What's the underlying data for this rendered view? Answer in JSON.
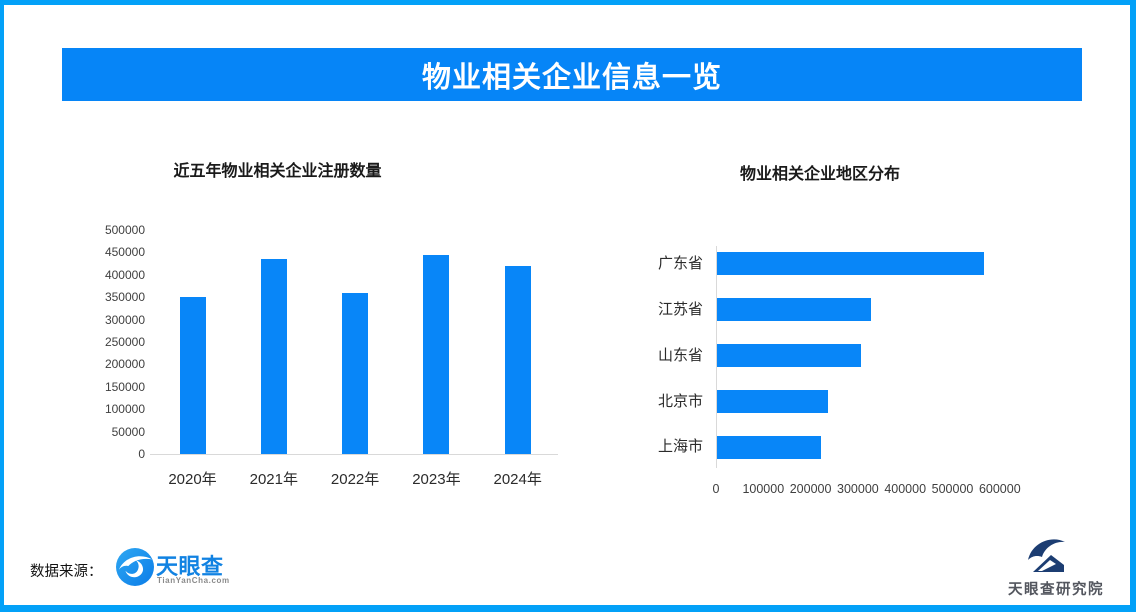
{
  "header": {
    "title": "物业相关企业信息一览"
  },
  "chart_data": [
    {
      "type": "bar",
      "orientation": "vertical",
      "title": "近五年物业相关企业注册数量",
      "categories": [
        "2020年",
        "2021年",
        "2022年",
        "2023年",
        "2024年"
      ],
      "values": [
        350000,
        435000,
        360000,
        445000,
        420000
      ],
      "xlabel": "",
      "ylabel": "",
      "ylim": [
        0,
        500000
      ],
      "ytick_step": 50000,
      "grid": false,
      "legend": false,
      "bar_color": "#0886f8"
    },
    {
      "type": "bar",
      "orientation": "horizontal",
      "title": "物业相关企业地区分布",
      "categories": [
        "广东省",
        "江苏省",
        "山东省",
        "北京市",
        "上海市"
      ],
      "values": [
        565000,
        325000,
        305000,
        235000,
        220000
      ],
      "xlabel": "",
      "ylabel": "",
      "xlim": [
        0,
        600000
      ],
      "xtick_step": 100000,
      "grid": false,
      "legend": false,
      "bar_color": "#0886f8"
    }
  ],
  "footer": {
    "source_label": "数据来源：",
    "tianyancha_name": "天眼查",
    "tianyancha_domain": "TianYanCha.com",
    "institute_name": "天眼查研究院"
  },
  "colors": {
    "frame_border": "#03a1f8",
    "banner": "#0685f7",
    "accent": "#0886f8",
    "axis_line": "#d9d9d9",
    "tick_text": "#3f3f3f",
    "category_text": "#2b2b2b",
    "tyc_blue": "#1182e2",
    "institute_navy": "#1c3d72"
  }
}
